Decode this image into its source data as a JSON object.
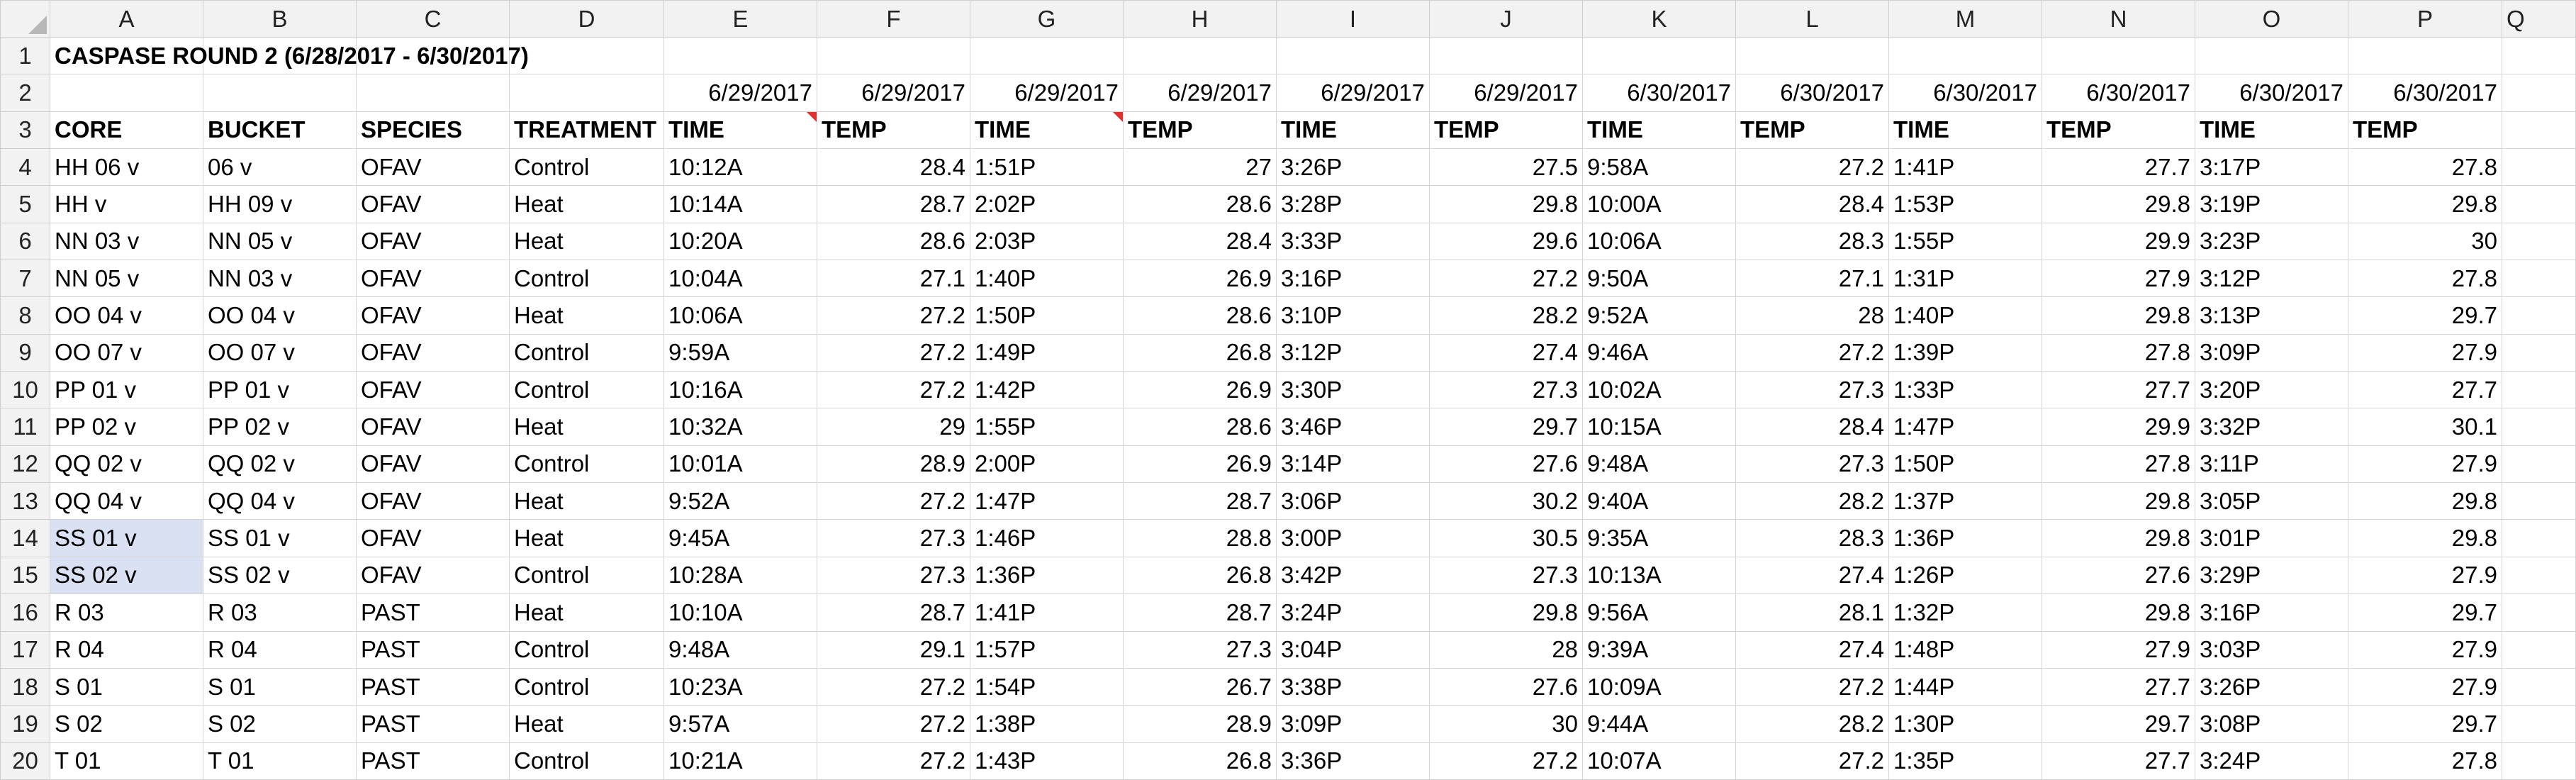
{
  "columns": [
    "A",
    "B",
    "C",
    "D",
    "E",
    "F",
    "G",
    "H",
    "I",
    "J",
    "K",
    "L",
    "M",
    "N",
    "O",
    "P"
  ],
  "partial_column": "Q",
  "row_numbers": [
    1,
    2,
    3,
    4,
    5,
    6,
    7,
    8,
    9,
    10,
    11,
    12,
    13,
    14,
    15,
    16,
    17,
    18,
    19,
    20
  ],
  "colors": {
    "header_bg": "#f2f2f2",
    "grid": "#d4d4d4",
    "selection": "#d9e1f2",
    "comment_marker": "#e03030"
  },
  "title": "CASPASE ROUND 2 (6/28/2017 - 6/30/2017)",
  "dates": [
    "6/29/2017",
    "6/29/2017",
    "6/29/2017",
    "6/29/2017",
    "6/29/2017",
    "6/29/2017",
    "6/30/2017",
    "6/30/2017",
    "6/30/2017",
    "6/30/2017",
    "6/30/2017",
    "6/30/2017"
  ],
  "headers": [
    "CORE",
    "BUCKET",
    "SPECIES",
    "TREATMENT",
    "TIME",
    "TEMP",
    "TIME",
    "TEMP",
    "TIME",
    "TEMP",
    "TIME",
    "TEMP",
    "TIME",
    "TEMP",
    "TIME",
    "TEMP"
  ],
  "comment_cells": [
    "E3",
    "G3"
  ],
  "selected_cells": [
    "A14",
    "A15"
  ],
  "rows": [
    [
      "HH 06 v",
      "06 v",
      "OFAV",
      "Control",
      "10:12A",
      "28.4",
      "1:51P",
      "27",
      "3:26P",
      "27.5",
      "9:58A",
      "27.2",
      "1:41P",
      "27.7",
      "3:17P",
      "27.8"
    ],
    [
      "HH v",
      "HH 09 v",
      "OFAV",
      "Heat",
      "10:14A",
      "28.7",
      "2:02P",
      "28.6",
      "3:28P",
      "29.8",
      "10:00A",
      "28.4",
      "1:53P",
      "29.8",
      "3:19P",
      "29.8"
    ],
    [
      "NN 03 v",
      "NN 05 v",
      "OFAV",
      "Heat",
      "10:20A",
      "28.6",
      "2:03P",
      "28.4",
      "3:33P",
      "29.6",
      "10:06A",
      "28.3",
      "1:55P",
      "29.9",
      "3:23P",
      "30"
    ],
    [
      "NN 05 v",
      "NN 03 v",
      "OFAV",
      "Control",
      "10:04A",
      "27.1",
      "1:40P",
      "26.9",
      "3:16P",
      "27.2",
      "9:50A",
      "27.1",
      "1:31P",
      "27.9",
      "3:12P",
      "27.8"
    ],
    [
      "OO 04 v",
      "OO 04 v",
      "OFAV",
      "Heat",
      "10:06A",
      "27.2",
      "1:50P",
      "28.6",
      "3:10P",
      "28.2",
      "9:52A",
      "28",
      "1:40P",
      "29.8",
      "3:13P",
      "29.7"
    ],
    [
      "OO 07 v",
      "OO 07 v",
      "OFAV",
      "Control",
      "9:59A",
      "27.2",
      "1:49P",
      "26.8",
      "3:12P",
      "27.4",
      "9:46A",
      "27.2",
      "1:39P",
      "27.8",
      "3:09P",
      "27.9"
    ],
    [
      "PP 01 v",
      "PP 01 v",
      "OFAV",
      "Control",
      "10:16A",
      "27.2",
      "1:42P",
      "26.9",
      "3:30P",
      "27.3",
      "10:02A",
      "27.3",
      "1:33P",
      "27.7",
      "3:20P",
      "27.7"
    ],
    [
      "PP 02 v",
      "PP 02 v",
      "OFAV",
      "Heat",
      "10:32A",
      "29",
      "1:55P",
      "28.6",
      "3:46P",
      "29.7",
      "10:15A",
      "28.4",
      "1:47P",
      "29.9",
      "3:32P",
      "30.1"
    ],
    [
      "QQ 02 v",
      "QQ 02 v",
      "OFAV",
      "Control",
      "10:01A",
      "28.9",
      "2:00P",
      "26.9",
      "3:14P",
      "27.6",
      "9:48A",
      "27.3",
      "1:50P",
      "27.8",
      "3:11P",
      "27.9"
    ],
    [
      "QQ 04 v",
      "QQ 04 v",
      "OFAV",
      "Heat",
      "9:52A",
      "27.2",
      "1:47P",
      "28.7",
      "3:06P",
      "30.2",
      "9:40A",
      "28.2",
      "1:37P",
      "29.8",
      "3:05P",
      "29.8"
    ],
    [
      "SS 01 v",
      "SS 01 v",
      "OFAV",
      "Heat",
      "9:45A",
      "27.3",
      "1:46P",
      "28.8",
      "3:00P",
      "30.5",
      "9:35A",
      "28.3",
      "1:36P",
      "29.8",
      "3:01P",
      "29.8"
    ],
    [
      "SS 02 v",
      "SS 02 v",
      "OFAV",
      "Control",
      "10:28A",
      "27.3",
      "1:36P",
      "26.8",
      "3:42P",
      "27.3",
      "10:13A",
      "27.4",
      "1:26P",
      "27.6",
      "3:29P",
      "27.9"
    ],
    [
      "R 03",
      "R 03",
      "PAST",
      "Heat",
      "10:10A",
      "28.7",
      "1:41P",
      "28.7",
      "3:24P",
      "29.8",
      "9:56A",
      "28.1",
      "1:32P",
      "29.8",
      "3:16P",
      "29.7"
    ],
    [
      "R 04",
      "R 04",
      "PAST",
      "Control",
      "9:48A",
      "29.1",
      "1:57P",
      "27.3",
      "3:04P",
      "28",
      "9:39A",
      "27.4",
      "1:48P",
      "27.9",
      "3:03P",
      "27.9"
    ],
    [
      "S 01",
      "S 01",
      "PAST",
      "Control",
      "10:23A",
      "27.2",
      "1:54P",
      "26.7",
      "3:38P",
      "27.6",
      "10:09A",
      "27.2",
      "1:44P",
      "27.7",
      "3:26P",
      "27.9"
    ],
    [
      "S 02",
      "S 02",
      "PAST",
      "Heat",
      "9:57A",
      "27.2",
      "1:38P",
      "28.9",
      "3:09P",
      "30",
      "9:44A",
      "28.2",
      "1:30P",
      "29.7",
      "3:08P",
      "29.7"
    ],
    [
      "T 01",
      "T 01",
      "PAST",
      "Control",
      "10:21A",
      "27.2",
      "1:43P",
      "26.8",
      "3:36P",
      "27.2",
      "10:07A",
      "27.2",
      "1:35P",
      "27.7",
      "3:24P",
      "27.8"
    ]
  ]
}
